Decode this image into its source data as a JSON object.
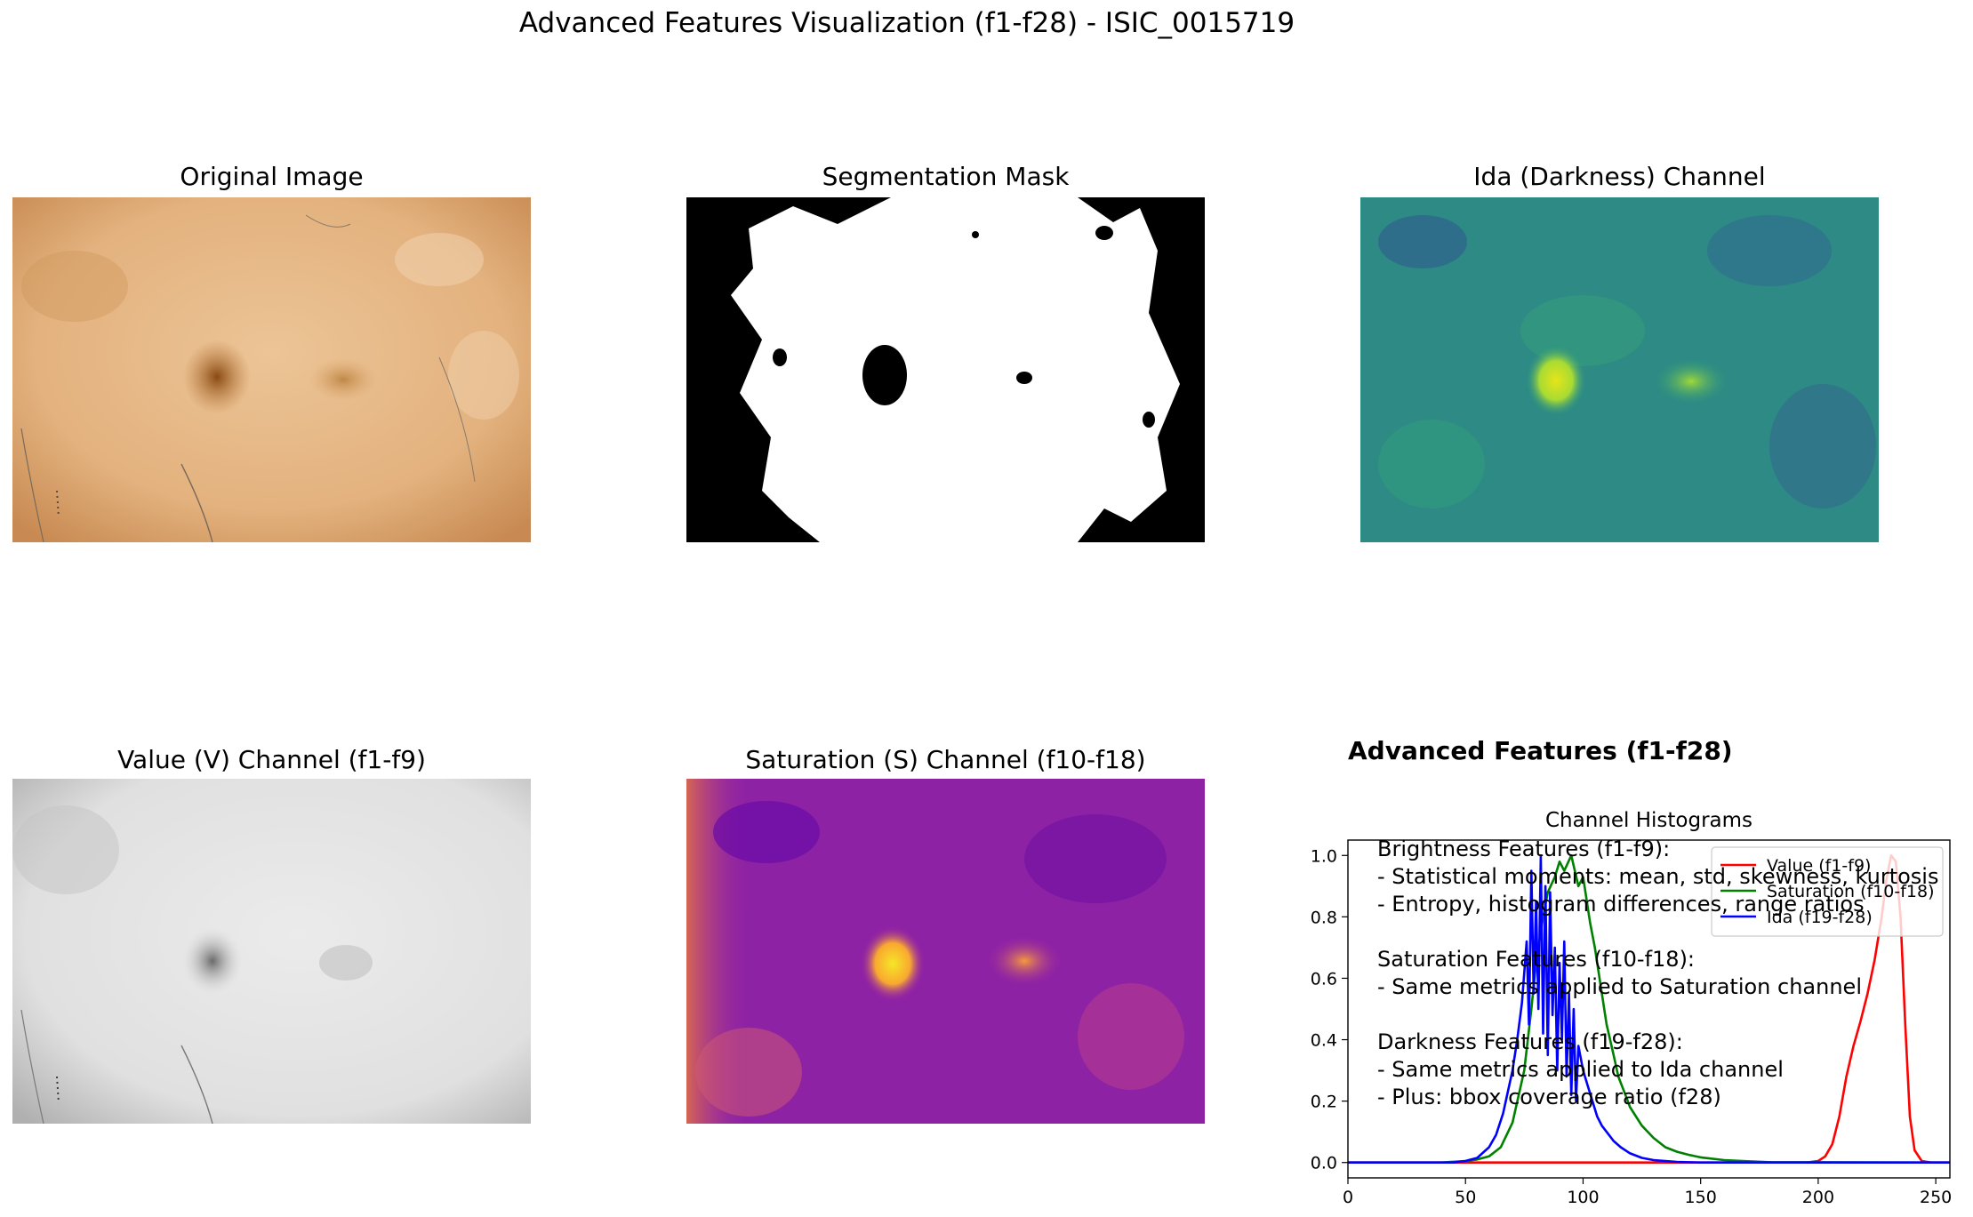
{
  "figure": {
    "suptitle": "Advanced Features Visualization (f1-f28) - ISIC_0015719",
    "panels": {
      "original": "Original Image",
      "mask": "Segmentation Mask",
      "ida": "Ida (Darkness) Channel",
      "value": "Value (V) Channel (f1-f9)",
      "saturation": "Saturation (S) Channel (f10-f18)"
    },
    "features_title": "Advanced Features (f1-f28)",
    "features_text": [
      "Brightness Features (f1-f9):",
      "- Statistical moments: mean, std, skewness, kurtosis",
      "- Entropy, histogram differences, range ratios",
      "",
      "Saturation Features (f10-f18):",
      "- Same metrics applied to Saturation channel",
      "",
      "Darkness Features (f19-f28):",
      "- Same metrics applied to Ida channel",
      "- Plus: bbox coverage ratio (f28)"
    ]
  },
  "chart_data": {
    "type": "line",
    "title": "Channel Histograms",
    "xlabel": "",
    "ylabel": "",
    "xlim": [
      0,
      256
    ],
    "ylim": [
      -0.05,
      1.05
    ],
    "xticks": [
      0,
      50,
      100,
      150,
      200,
      250
    ],
    "yticks": [
      0.0,
      0.2,
      0.4,
      0.6,
      0.8,
      1.0
    ],
    "legend": "upper right",
    "grid": false,
    "series": [
      {
        "name": "Value (f1-f9)",
        "color": "#ff0000",
        "x": [
          0,
          195,
          200,
          203,
          206,
          209,
          212,
          215,
          218,
          221,
          224,
          227,
          229,
          231,
          233,
          235,
          237,
          239,
          241,
          244,
          248,
          256
        ],
        "y": [
          0,
          0,
          0.005,
          0.02,
          0.06,
          0.15,
          0.28,
          0.38,
          0.46,
          0.55,
          0.66,
          0.8,
          0.92,
          1.0,
          0.98,
          0.8,
          0.45,
          0.15,
          0.04,
          0.005,
          0,
          0
        ]
      },
      {
        "name": "Saturation (f10-f18)",
        "color": "#008000",
        "x": [
          0,
          40,
          50,
          55,
          60,
          65,
          70,
          75,
          78,
          80,
          83,
          85,
          88,
          90,
          92,
          95,
          98,
          100,
          103,
          105,
          108,
          110,
          113,
          115,
          118,
          120,
          125,
          130,
          135,
          140,
          145,
          150,
          160,
          170,
          180,
          256
        ],
        "y": [
          0,
          0,
          0.005,
          0.01,
          0.02,
          0.05,
          0.13,
          0.3,
          0.5,
          0.65,
          0.8,
          0.88,
          0.93,
          0.98,
          0.95,
          1.0,
          0.9,
          0.93,
          0.78,
          0.7,
          0.55,
          0.45,
          0.35,
          0.28,
          0.22,
          0.18,
          0.12,
          0.08,
          0.05,
          0.035,
          0.025,
          0.017,
          0.008,
          0.004,
          0.001,
          0
        ]
      },
      {
        "name": "Ida (f19-f28)",
        "color": "#0000ff",
        "x": [
          0,
          45,
          50,
          55,
          60,
          63,
          66,
          68,
          70,
          72,
          74,
          76,
          77,
          78,
          79,
          80,
          81,
          82,
          83,
          84,
          85,
          86,
          87,
          88,
          89,
          90,
          91,
          92,
          93,
          94,
          95,
          96,
          97,
          98,
          100,
          102,
          104,
          106,
          108,
          110,
          113,
          116,
          120,
          125,
          130,
          140,
          150,
          256
        ],
        "y": [
          0,
          0,
          0.005,
          0.015,
          0.05,
          0.09,
          0.16,
          0.23,
          0.3,
          0.4,
          0.52,
          0.72,
          0.45,
          0.95,
          0.55,
          0.85,
          0.5,
          1.0,
          0.42,
          0.9,
          0.35,
          0.88,
          0.48,
          0.7,
          0.3,
          0.65,
          0.4,
          0.72,
          0.28,
          0.55,
          0.22,
          0.5,
          0.2,
          0.38,
          0.3,
          0.25,
          0.2,
          0.15,
          0.12,
          0.1,
          0.07,
          0.05,
          0.03,
          0.015,
          0.008,
          0.002,
          0,
          0
        ]
      }
    ]
  }
}
